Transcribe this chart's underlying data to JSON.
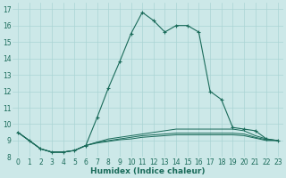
{
  "xlabel": "Humidex (Indice chaleur)",
  "bg_color": "#cce8e8",
  "grid_color": "#aad4d4",
  "line_color": "#1a6b5a",
  "xlim": [
    -0.5,
    23.5
  ],
  "ylim": [
    8,
    17.4
  ],
  "yticks": [
    8,
    9,
    10,
    11,
    12,
    13,
    14,
    15,
    16,
    17
  ],
  "xticks": [
    0,
    1,
    2,
    3,
    4,
    5,
    6,
    7,
    8,
    9,
    10,
    11,
    12,
    13,
    14,
    15,
    16,
    17,
    18,
    19,
    20,
    21,
    22,
    23
  ],
  "series_main": {
    "x": [
      0,
      1,
      2,
      3,
      4,
      5,
      6,
      7,
      8,
      9,
      10,
      11,
      12,
      13,
      14,
      15,
      16,
      17,
      18,
      19,
      20,
      21,
      22,
      23
    ],
    "y": [
      9.5,
      9.0,
      8.5,
      8.3,
      8.3,
      8.4,
      8.7,
      10.4,
      12.2,
      13.8,
      15.5,
      16.8,
      16.3,
      15.6,
      16.0,
      16.0,
      15.6,
      12.0,
      11.5,
      9.8,
      9.7,
      9.6,
      9.1,
      9.0
    ]
  },
  "series_flat": [
    [
      9.5,
      9.0,
      8.5,
      8.3,
      8.3,
      8.4,
      8.7,
      8.85,
      8.95,
      9.05,
      9.1,
      9.2,
      9.25,
      9.3,
      9.35,
      9.35,
      9.35,
      9.35,
      9.35,
      9.35,
      9.3,
      9.15,
      9.0,
      9.0
    ],
    [
      9.5,
      9.0,
      8.5,
      8.3,
      8.3,
      8.4,
      8.7,
      8.9,
      9.0,
      9.1,
      9.2,
      9.3,
      9.35,
      9.4,
      9.45,
      9.45,
      9.45,
      9.45,
      9.45,
      9.45,
      9.4,
      9.2,
      9.05,
      9.0
    ],
    [
      9.5,
      9.0,
      8.5,
      8.3,
      8.3,
      8.4,
      8.7,
      8.9,
      9.1,
      9.2,
      9.3,
      9.4,
      9.5,
      9.6,
      9.7,
      9.7,
      9.7,
      9.7,
      9.7,
      9.7,
      9.6,
      9.3,
      9.1,
      9.0
    ]
  ],
  "tick_fontsize": 5.5,
  "xlabel_fontsize": 6.5
}
